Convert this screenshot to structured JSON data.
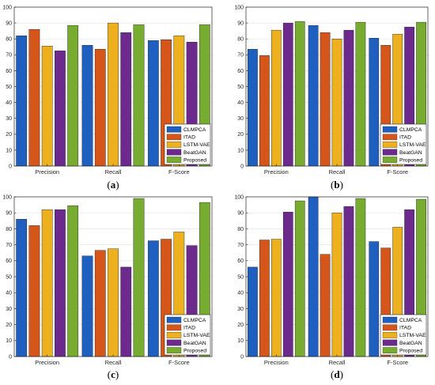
{
  "chart_data": [
    {
      "type": "bar",
      "panel_label": "a",
      "categories": [
        "Precision",
        "Recall",
        "F-Score"
      ],
      "series": [
        {
          "name": "CLMPCA",
          "values": [
            82,
            76,
            79
          ]
        },
        {
          "name": "ITAD",
          "values": [
            86,
            73.5,
            79.5
          ]
        },
        {
          "name": "LSTM-VAE",
          "values": [
            75.5,
            90,
            82
          ]
        },
        {
          "name": "BeatGAN",
          "values": [
            72.5,
            84,
            78
          ]
        },
        {
          "name": "Proposed",
          "values": [
            88.5,
            89,
            89
          ]
        }
      ],
      "ylim": [
        0,
        100
      ],
      "yticks": [
        "0",
        "10",
        "20",
        "30",
        "40",
        "50",
        "60",
        "70",
        "80",
        "90",
        "100"
      ],
      "legend_position": "bottom-right",
      "grid": true
    },
    {
      "type": "bar",
      "panel_label": "b",
      "categories": [
        "Precision",
        "Recall",
        "F-Score"
      ],
      "series": [
        {
          "name": "CLMPCA",
          "values": [
            73.5,
            88.5,
            80.5
          ]
        },
        {
          "name": "ITAD",
          "values": [
            69.5,
            84,
            76
          ]
        },
        {
          "name": "LSTM-VAE",
          "values": [
            85.5,
            80,
            83
          ]
        },
        {
          "name": "BeatGAN",
          "values": [
            90,
            85.5,
            87.5
          ]
        },
        {
          "name": "Proposed",
          "values": [
            91,
            90.5,
            90.5
          ]
        }
      ],
      "ylim": [
        0,
        100
      ],
      "yticks": [
        "0",
        "10",
        "20",
        "30",
        "40",
        "50",
        "60",
        "70",
        "80",
        "90",
        "100"
      ],
      "legend_position": "bottom-right",
      "grid": true
    },
    {
      "type": "bar",
      "panel_label": "c",
      "categories": [
        "Precision",
        "Recall",
        "F-Score"
      ],
      "series": [
        {
          "name": "CLMPCA",
          "values": [
            86,
            63,
            72.5
          ]
        },
        {
          "name": "ITAD",
          "values": [
            82,
            66.5,
            73.5
          ]
        },
        {
          "name": "LSTM-VAE",
          "values": [
            92,
            67.5,
            78
          ]
        },
        {
          "name": "BeatGAN",
          "values": [
            92,
            56,
            69.5
          ]
        },
        {
          "name": "Proposed",
          "values": [
            94.5,
            99,
            96.5
          ]
        }
      ],
      "ylim": [
        0,
        100
      ],
      "yticks": [
        "0",
        "10",
        "20",
        "30",
        "40",
        "50",
        "60",
        "70",
        "80",
        "90",
        "100"
      ],
      "legend_position": "bottom-right",
      "grid": true
    },
    {
      "type": "bar",
      "panel_label": "d",
      "categories": [
        "Precision",
        "Recall",
        "F-Score"
      ],
      "series": [
        {
          "name": "CLMPCA",
          "values": [
            56,
            100,
            72
          ]
        },
        {
          "name": "ITAD",
          "values": [
            73,
            64,
            68
          ]
        },
        {
          "name": "LSTM-VAE",
          "values": [
            73.5,
            90,
            81
          ]
        },
        {
          "name": "BeatGAN",
          "values": [
            90.5,
            94,
            92
          ]
        },
        {
          "name": "Proposed",
          "values": [
            97.5,
            99,
            98.5
          ]
        }
      ],
      "ylim": [
        0,
        100
      ],
      "yticks": [
        "0",
        "10",
        "20",
        "30",
        "40",
        "50",
        "60",
        "70",
        "80",
        "90",
        "100"
      ],
      "legend_position": "bottom-right",
      "grid": true
    }
  ],
  "colors": {
    "CLMPCA": "#1f5fbf",
    "ITAD": "#d5561a",
    "LSTM-VAE": "#edb11f",
    "BeatGAN": "#6b2a8c",
    "Proposed": "#77ac30",
    "grid": "#e6e6e6",
    "axis": "#262626"
  }
}
